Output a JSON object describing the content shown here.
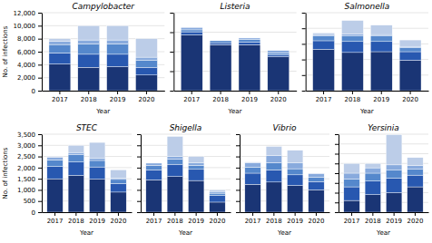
{
  "chart_data": [
    {
      "type": "bar",
      "title": "Campylobacter",
      "stacked": true,
      "grid": true,
      "x_label": "Year",
      "y_label": "No. of infections",
      "categories": [
        "2017",
        "2018",
        "2019",
        "2020"
      ],
      "series": [
        {
          "color": "#1a3575",
          "values": [
            4100,
            3600,
            3700,
            2400
          ]
        },
        {
          "color": "#2858b0",
          "values": [
            1700,
            2000,
            1900,
            1200
          ]
        },
        {
          "color": "#5588cc",
          "values": [
            1300,
            1600,
            1600,
            1050
          ]
        },
        {
          "color": "#88aadd",
          "values": [
            500,
            600,
            600,
            500
          ]
        },
        {
          "color": "#bccde8",
          "values": [
            400,
            2200,
            2200,
            2850
          ]
        }
      ],
      "ylim": [
        0,
        12000
      ],
      "yticks": [
        0,
        {
          "value": 2000,
          "label": "2,000"
        },
        {
          "value": 4000,
          "label": "4,000"
        },
        {
          "value": 6000,
          "label": "6,000"
        },
        {
          "value": 8000,
          "label": "8,000"
        },
        {
          "value": 10000,
          "label": "10,000"
        },
        {
          "value": 12000,
          "label": "12,000"
        }
      ]
    },
    {
      "type": "bar",
      "title": "Listeria",
      "stacked": true,
      "grid": true,
      "tick_labels": "x",
      "x_label": "Year",
      "categories": [
        "2017",
        "2018",
        "2019",
        "2020"
      ],
      "series": [
        {
          "color": "#1a3575",
          "values": [
            143,
            118,
            118,
            87
          ]
        },
        {
          "color": "#2858b0",
          "values": [
            8,
            5,
            6,
            5
          ]
        },
        {
          "color": "#5588cc",
          "values": [
            5,
            5,
            8,
            5
          ]
        },
        {
          "color": "#88aadd",
          "values": [
            6,
            0,
            3,
            6
          ]
        }
      ],
      "ylim": [
        0,
        200
      ],
      "yticks": [
        0,
        50,
        100,
        150,
        200
      ]
    },
    {
      "type": "bar",
      "title": "Salmonella",
      "stacked": true,
      "grid": true,
      "tick_labels": "x",
      "x_label": "Year",
      "categories": [
        "2017",
        "2018",
        "2019",
        "2020"
      ],
      "series": [
        {
          "color": "#1a3575",
          "values": [
            5300,
            4900,
            5000,
            3900
          ]
        },
        {
          "color": "#2858b0",
          "values": [
            1100,
            1400,
            1300,
            1100
          ]
        },
        {
          "color": "#5588cc",
          "values": [
            600,
            700,
            700,
            500
          ]
        },
        {
          "color": "#88aadd",
          "values": [
            200,
            250,
            200,
            180
          ]
        },
        {
          "color": "#bccde8",
          "values": [
            200,
            1750,
            1200,
            820
          ]
        }
      ],
      "ylim": [
        0,
        10000
      ],
      "yticks": [
        0,
        2000,
        4000,
        6000,
        8000,
        10000
      ]
    },
    {
      "type": "bar",
      "title": "STEC",
      "stacked": true,
      "grid": true,
      "x_label": "Year",
      "y_label": "No. of infections",
      "categories": [
        "2017",
        "2018",
        "2019",
        "2020"
      ],
      "series": [
        {
          "color": "#1a3575",
          "values": [
            1500,
            1650,
            1480,
            900
          ]
        },
        {
          "color": "#2858b0",
          "values": [
            550,
            600,
            550,
            380
          ]
        },
        {
          "color": "#5588cc",
          "values": [
            300,
            330,
            290,
            190
          ]
        },
        {
          "color": "#88aadd",
          "values": [
            100,
            100,
            90,
            50
          ]
        },
        {
          "color": "#bccde8",
          "values": [
            50,
            320,
            720,
            380
          ]
        }
      ],
      "ylim": [
        0,
        3500
      ],
      "yticks": [
        0,
        500,
        {
          "value": 1000,
          "label": "1,000"
        },
        {
          "value": 1500,
          "label": "1,500"
        },
        {
          "value": 2000,
          "label": "2,000"
        },
        {
          "value": 2500,
          "label": "2,500"
        },
        {
          "value": 3000,
          "label": "3,000"
        },
        {
          "value": 3500,
          "label": "3,500"
        }
      ]
    },
    {
      "type": "bar",
      "title": "Shigella",
      "stacked": true,
      "grid": true,
      "tick_labels": "x",
      "x_label": "Year",
      "categories": [
        "2017",
        "2018",
        "2019",
        "2020"
      ],
      "series": [
        {
          "color": "#1a3575",
          "values": [
            1450,
            1600,
            1420,
            450
          ]
        },
        {
          "color": "#2858b0",
          "values": [
            450,
            550,
            500,
            300
          ]
        },
        {
          "color": "#5588cc",
          "values": [
            200,
            230,
            180,
            100
          ]
        },
        {
          "color": "#88aadd",
          "values": [
            100,
            130,
            110,
            80
          ]
        },
        {
          "color": "#bccde8",
          "values": [
            0,
            890,
            290,
            70
          ]
        }
      ],
      "ylim": [
        0,
        3500
      ],
      "yticks": [
        0,
        500,
        1000,
        1500,
        2000,
        2500,
        3000,
        3500
      ]
    },
    {
      "type": "bar",
      "title": "Vibrio",
      "stacked": true,
      "grid": true,
      "tick_labels": "x",
      "x_label": "Year",
      "categories": [
        "2017",
        "2018",
        "2019",
        "2020"
      ],
      "series": [
        {
          "color": "#1a3575",
          "values": [
            250,
            270,
            240,
            200
          ]
        },
        {
          "color": "#2858b0",
          "values": [
            100,
            110,
            95,
            75
          ]
        },
        {
          "color": "#5588cc",
          "values": [
            55,
            65,
            55,
            40
          ]
        },
        {
          "color": "#88aadd",
          "values": [
            40,
            65,
            55,
            30
          ]
        },
        {
          "color": "#bccde8",
          "values": [
            5,
            80,
            110,
            5
          ]
        }
      ],
      "ylim": [
        0,
        700
      ],
      "yticks": [
        0,
        100,
        200,
        300,
        400,
        500,
        600,
        700
      ]
    },
    {
      "type": "bar",
      "title": "Yersinia",
      "stacked": true,
      "grid": true,
      "tick_labels": "x",
      "x_label": "Year",
      "categories": [
        "2017",
        "2018",
        "2019",
        "2020"
      ],
      "series": [
        {
          "color": "#1a3575",
          "values": [
            120,
            180,
            200,
            260
          ]
        },
        {
          "color": "#2858b0",
          "values": [
            140,
            140,
            150,
            120
          ]
        },
        {
          "color": "#5588cc",
          "values": [
            80,
            80,
            80,
            60
          ]
        },
        {
          "color": "#88aadd",
          "values": [
            60,
            55,
            55,
            40
          ]
        },
        {
          "color": "#bccde8",
          "values": [
            100,
            45,
            310,
            80
          ]
        }
      ],
      "ylim": [
        0,
        800
      ],
      "yticks": [
        0,
        100,
        200,
        300,
        400,
        500,
        600,
        700,
        800
      ]
    }
  ]
}
